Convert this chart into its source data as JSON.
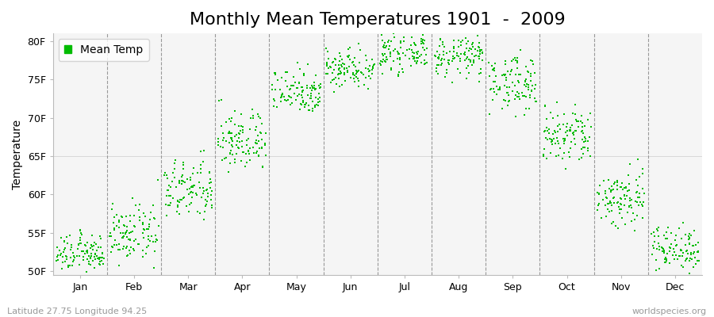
{
  "title": "Monthly Mean Temperatures 1901  -  2009",
  "ylabel": "Temperature",
  "xlabel_labels": [
    "Jan",
    "Feb",
    "Mar",
    "Apr",
    "May",
    "Jun",
    "Jul",
    "Aug",
    "Sep",
    "Oct",
    "Nov",
    "Dec"
  ],
  "ytick_labels": [
    "50F",
    "55F",
    "60F",
    "65F",
    "70F",
    "75F",
    "80F"
  ],
  "ytick_values": [
    50,
    55,
    60,
    65,
    70,
    75,
    80
  ],
  "ylim": [
    49.5,
    81
  ],
  "legend_label": "Mean Temp",
  "marker_color": "#00bb00",
  "plot_bg": "#f5f5f5",
  "fig_bg": "#ffffff",
  "footer_left": "Latitude 27.75 Longitude 94.25",
  "footer_right": "worldspecies.org",
  "monthly_means": [
    52.3,
    54.8,
    60.5,
    67.0,
    73.5,
    76.5,
    78.5,
    78.0,
    74.5,
    67.5,
    59.5,
    53.0
  ],
  "monthly_stds": [
    1.2,
    1.8,
    2.0,
    2.0,
    1.5,
    1.3,
    1.2,
    1.3,
    1.8,
    2.0,
    2.0,
    1.5
  ],
  "n_years": 109,
  "title_fontsize": 16,
  "axis_fontsize": 10,
  "tick_fontsize": 9,
  "footer_fontsize": 8
}
